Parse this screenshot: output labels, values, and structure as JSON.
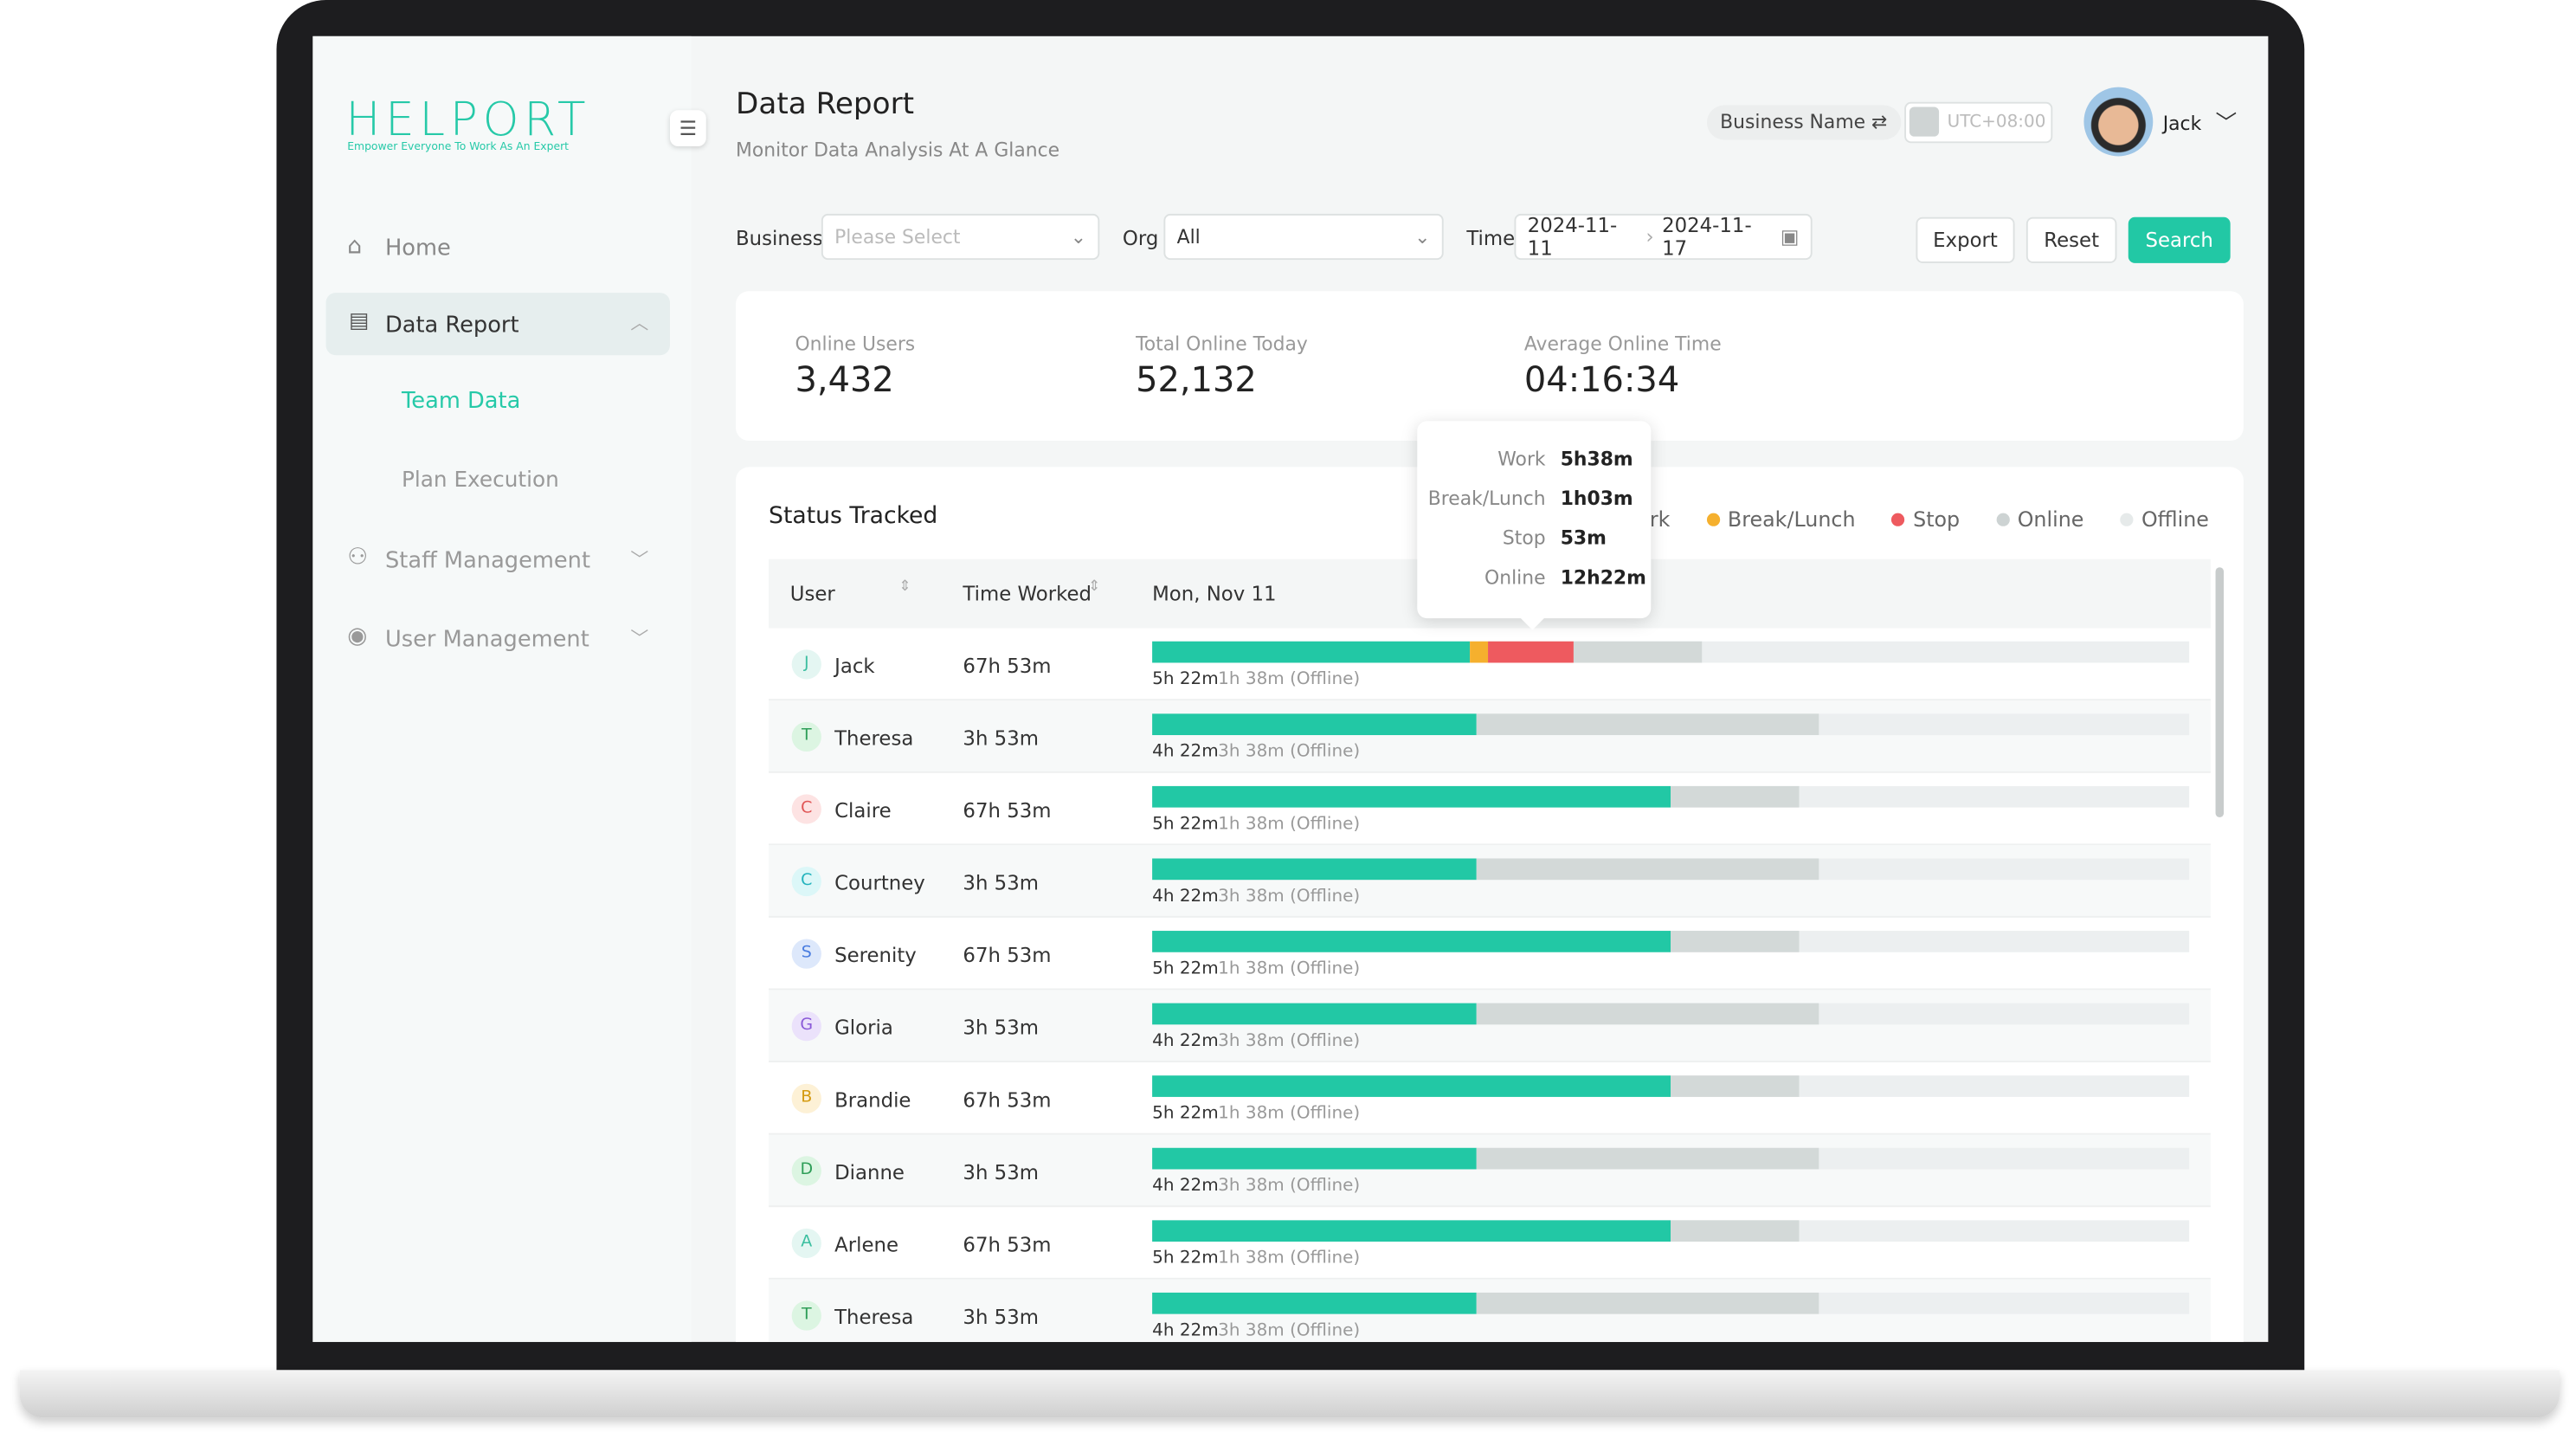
{
  "sidebar": {
    "logo": "HELPORT",
    "tagline": "Empower Everyone To Work As An Expert",
    "menu": [
      {
        "label": "Home"
      },
      {
        "label": "Data Report",
        "children": [
          "Team Data",
          "Plan Execution"
        ]
      },
      {
        "label": "Staff Management"
      },
      {
        "label": "User Management"
      }
    ]
  },
  "header": {
    "title": "Data Report",
    "subtitle": "Monitor Data Analysis At A Glance",
    "business": "Business Name",
    "timezone": "UTC+08:00",
    "user": "Jack"
  },
  "filters": {
    "business_label": "Business",
    "business_placeholder": "Please Select",
    "org_label": "Org",
    "org_value": "All",
    "time_label": "Time",
    "start": "2024-11-11",
    "end": "2024-11-17",
    "buttons": [
      "Export",
      "Reset",
      "Search"
    ]
  },
  "stats": [
    {
      "label": "Online Users",
      "value": "3,432"
    },
    {
      "label": "Total Online Today",
      "value": "52,132"
    },
    {
      "label": "Average Online Time",
      "value": "04:16:34"
    }
  ],
  "status": {
    "title": "Status Tracked",
    "legend": [
      "Work",
      "Break/Lunch",
      "Stop",
      "Online",
      "Offline"
    ],
    "columns": [
      "User",
      "Time Worked",
      "Mon, Nov 11"
    ],
    "tooltip": [
      {
        "label": "Work",
        "value": "5h38m"
      },
      {
        "label": "Break/Lunch",
        "value": "1h03m"
      },
      {
        "label": "Stop",
        "value": "53m"
      },
      {
        "label": "Online",
        "value": "12h22m"
      }
    ],
    "rows": [
      {
        "initial": "J",
        "user": "Jack",
        "worked": "67h 53m",
        "online": "5h 22m",
        "offline": "1h 38m (Offline)"
      },
      {
        "initial": "T",
        "user": "Theresa",
        "worked": "3h 53m",
        "online": "4h 22m",
        "offline": "3h 38m (Offline)"
      },
      {
        "initial": "C",
        "user": "Claire",
        "worked": "67h 53m",
        "online": "5h 22m",
        "offline": "1h 38m (Offline)"
      },
      {
        "initial": "C",
        "user": "Courtney",
        "worked": "3h 53m",
        "online": "4h 22m",
        "offline": "3h 38m (Offline)"
      },
      {
        "initial": "S",
        "user": "Serenity",
        "worked": "67h 53m",
        "online": "5h 22m",
        "offline": "1h 38m (Offline)"
      },
      {
        "initial": "G",
        "user": "Gloria",
        "worked": "3h 53m",
        "online": "4h 22m",
        "offline": "3h 38m (Offline)"
      },
      {
        "initial": "B",
        "user": "Brandie",
        "worked": "67h 53m",
        "online": "5h 22m",
        "offline": "1h 38m (Offline)"
      },
      {
        "initial": "D",
        "user": "Dianne",
        "worked": "3h 53m",
        "online": "4h 22m",
        "offline": "3h 38m (Offline)"
      },
      {
        "initial": "A",
        "user": "Arlene",
        "worked": "67h 53m",
        "online": "5h 22m",
        "offline": "1h 38m (Offline)"
      },
      {
        "initial": "T",
        "user": "Theresa",
        "worked": "3h 53m",
        "online": "4h 22m",
        "offline": "3h 38m (Offline)"
      }
    ]
  }
}
